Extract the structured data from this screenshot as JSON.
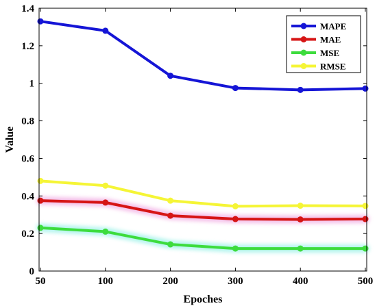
{
  "chart_data": {
    "type": "line",
    "title": "",
    "xlabel": "Epoches",
    "ylabel": "Value",
    "x_categories": [
      "50",
      "100",
      "200",
      "300",
      "400",
      "500"
    ],
    "ylim": [
      0,
      1.4
    ],
    "yticks": [
      "0",
      "0.2",
      "0.4",
      "0.6",
      "0.8",
      "1",
      "1.2",
      "1.4"
    ],
    "ytick_values": [
      0,
      0.2,
      0.4,
      0.6,
      0.8,
      1.0,
      1.2,
      1.4
    ],
    "grid": false,
    "legend_position": "top-right",
    "series": [
      {
        "name": "MAPE",
        "color": "#1515d6",
        "values": [
          1.33,
          1.28,
          1.04,
          0.975,
          0.965,
          0.972
        ]
      },
      {
        "name": "MAE",
        "color": "#d61515",
        "values": [
          0.375,
          0.365,
          0.295,
          0.277,
          0.275,
          0.277
        ]
      },
      {
        "name": "MSE",
        "color": "#3ddc3d",
        "values": [
          0.23,
          0.21,
          0.142,
          0.12,
          0.12,
          0.12
        ]
      },
      {
        "name": "RMSE",
        "color": "#f5f536",
        "values": [
          0.48,
          0.455,
          0.375,
          0.345,
          0.348,
          0.347
        ]
      }
    ]
  }
}
